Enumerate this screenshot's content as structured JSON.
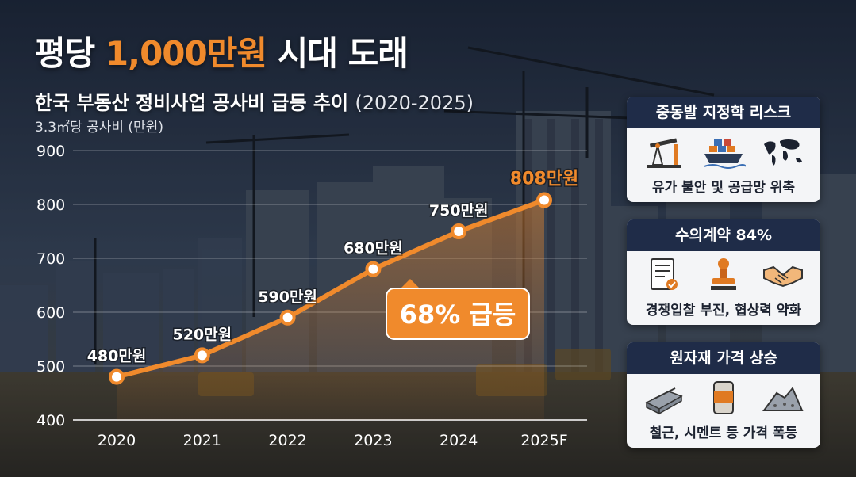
{
  "headline": {
    "prefix": "평당 ",
    "accent": "1,000만원",
    "suffix": " 시대 도래"
  },
  "subtitle": {
    "main": "한국 부동산 정비사업 공사비 급등 추이 ",
    "years": "(2020-2025)"
  },
  "chart_data": {
    "type": "line",
    "ylabel": "3.3㎡당 공사비 (만원)",
    "categories": [
      "2020",
      "2021",
      "2022",
      "2023",
      "2024",
      "2025F"
    ],
    "values": [
      480,
      520,
      590,
      680,
      750,
      808
    ],
    "data_labels": [
      "480만원",
      "520만원",
      "590만원",
      "680만원",
      "750만원",
      "808만원"
    ],
    "ylim": [
      400,
      900
    ],
    "yticks": [
      400,
      500,
      600,
      700,
      800,
      900
    ],
    "grid": true,
    "callout": "68% 급등",
    "colors": {
      "line": "#f08a2c",
      "highlight": "#f08a2c"
    }
  },
  "panels": [
    {
      "title": "중동발 지정학 리스크",
      "text": "유가 불안 및 공급망 위축",
      "icons": [
        "oil-pump-icon",
        "cargo-ship-icon",
        "world-map-icon"
      ]
    },
    {
      "title": "수의계약 84%",
      "text": "경쟁입찰 부진, 협상력 약화",
      "icons": [
        "contract-document-icon",
        "stamp-icon",
        "handshake-icon"
      ]
    },
    {
      "title": "원자재 가격 상승",
      "text": "철근, 시멘트 등 가격 폭등",
      "icons": [
        "steel-rebar-icon",
        "cement-bag-icon",
        "raw-material-pile-icon"
      ]
    }
  ],
  "colors": {
    "accent": "#f08a2c",
    "panel_header": "#1f2c48",
    "panel_body": "#f4f5f7"
  }
}
